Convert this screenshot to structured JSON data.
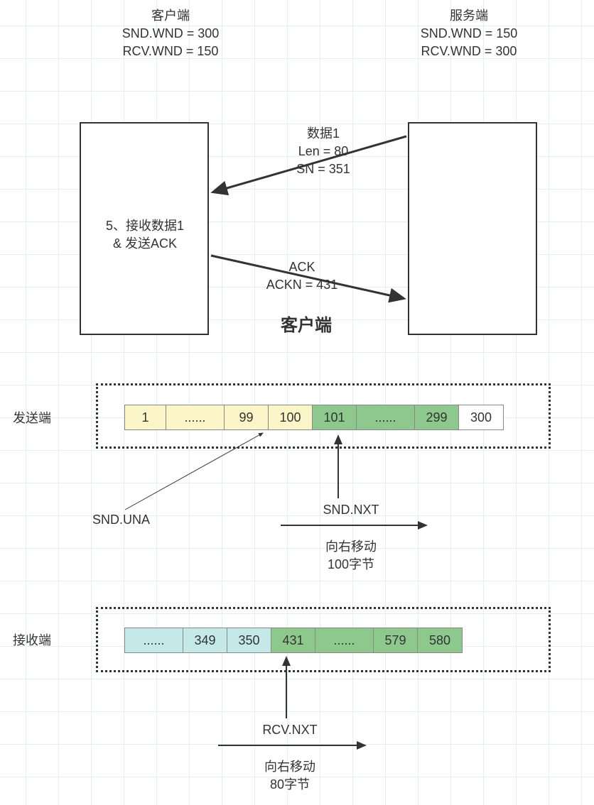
{
  "colors": {
    "grid": "#e8edf0",
    "border": "#333333",
    "text": "#333333",
    "cell_border": "#888888",
    "yellow": "#fbf5c8",
    "green": "#8dc98d",
    "cyan": "#c5e9e9",
    "white": "#ffffff"
  },
  "client_header": {
    "title": "客户端",
    "snd_wnd": "SND.WND = 300",
    "rcv_wnd": "RCV.WND = 150"
  },
  "server_header": {
    "title": "服务端",
    "snd_wnd": "SND.WND = 150",
    "rcv_wnd": "RCV.WND = 300"
  },
  "client_box": {
    "line1": "5、接收数据1",
    "line2": "&  发送ACK"
  },
  "arrows": {
    "data1": {
      "label1": "数据1",
      "label2": "Len = 80",
      "label3": "SN = 351"
    },
    "ack": {
      "label1": "ACK",
      "label2": "ACKN = 431"
    }
  },
  "center_title": "客户端",
  "sender": {
    "label": "发送端",
    "cells": [
      {
        "text": "1",
        "color": "yellow",
        "w": 58
      },
      {
        "text": "......",
        "color": "yellow",
        "w": 82
      },
      {
        "text": "99",
        "color": "yellow",
        "w": 62
      },
      {
        "text": "100",
        "color": "yellow",
        "w": 62
      },
      {
        "text": "101",
        "color": "green",
        "w": 62
      },
      {
        "text": "......",
        "color": "green",
        "w": 82
      },
      {
        "text": "299",
        "color": "green",
        "w": 62
      },
      {
        "text": "300",
        "color": "white",
        "w": 62
      }
    ]
  },
  "snd_una": "SND.UNA",
  "snd_nxt": {
    "label": "SND.NXT",
    "sub1": "向右移动",
    "sub2": "100字节"
  },
  "receiver": {
    "label": "接收端",
    "cells": [
      {
        "text": "......",
        "color": "cyan",
        "w": 82
      },
      {
        "text": "349",
        "color": "cyan",
        "w": 62
      },
      {
        "text": "350",
        "color": "cyan",
        "w": 62
      },
      {
        "text": "431",
        "color": "green",
        "w": 62
      },
      {
        "text": "......",
        "color": "green",
        "w": 82
      },
      {
        "text": "579",
        "color": "green",
        "w": 62
      },
      {
        "text": "580",
        "color": "green",
        "w": 62
      }
    ]
  },
  "rcv_nxt": {
    "label": "RCV.NXT",
    "sub1": "向右移动",
    "sub2": "80字节"
  }
}
